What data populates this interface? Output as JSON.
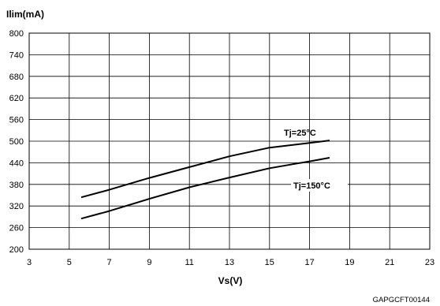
{
  "chart_data": {
    "type": "line",
    "ylabel": "Ilim(mA)",
    "xlabel": "Vs(V)",
    "xlim": [
      3,
      23
    ],
    "ylim": [
      200,
      800
    ],
    "xticks": [
      3,
      5,
      7,
      9,
      11,
      13,
      15,
      17,
      19,
      21,
      23
    ],
    "yticks": [
      200,
      260,
      320,
      380,
      440,
      500,
      560,
      620,
      680,
      740,
      800
    ],
    "grid": true,
    "series": [
      {
        "name": "Tj=25°C",
        "x": [
          5.6,
          7,
          9,
          11,
          13,
          15,
          17,
          18
        ],
        "y": [
          344,
          365,
          398,
          428,
          458,
          482,
          495,
          502
        ]
      },
      {
        "name": "Tj=150°C",
        "x": [
          5.6,
          7,
          9,
          11,
          13,
          15,
          17,
          18
        ],
        "y": [
          285,
          306,
          340,
          372,
          399,
          425,
          444,
          454
        ]
      }
    ]
  },
  "figure_code": "GAPGCFT00144"
}
